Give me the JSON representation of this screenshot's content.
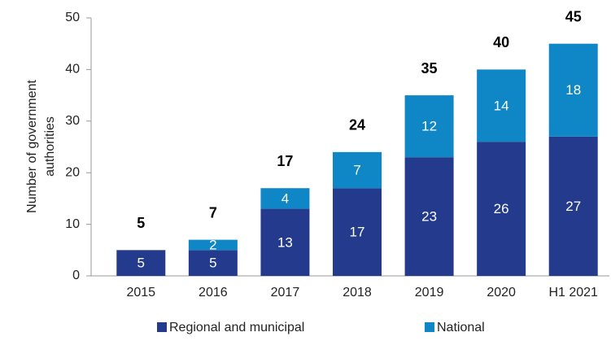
{
  "chart_data": {
    "type": "stacked-bar",
    "ylabel": [
      "Number of government",
      "authorities"
    ],
    "categories": [
      "2015",
      "2016",
      "2017",
      "2018",
      "2019",
      "2020",
      "H1 2021"
    ],
    "series": [
      {
        "name": "Regional and municipal",
        "color": "#243a8c",
        "values": [
          5,
          5,
          13,
          17,
          23,
          26,
          27
        ]
      },
      {
        "name": "National",
        "color": "#0f86c6",
        "values": [
          0,
          2,
          4,
          7,
          12,
          14,
          18
        ]
      }
    ],
    "totals": [
      5,
      7,
      17,
      24,
      35,
      40,
      45
    ],
    "ylim": [
      0,
      50
    ],
    "yticks": [
      0,
      10,
      20,
      30,
      40,
      50
    ],
    "grid": false
  }
}
